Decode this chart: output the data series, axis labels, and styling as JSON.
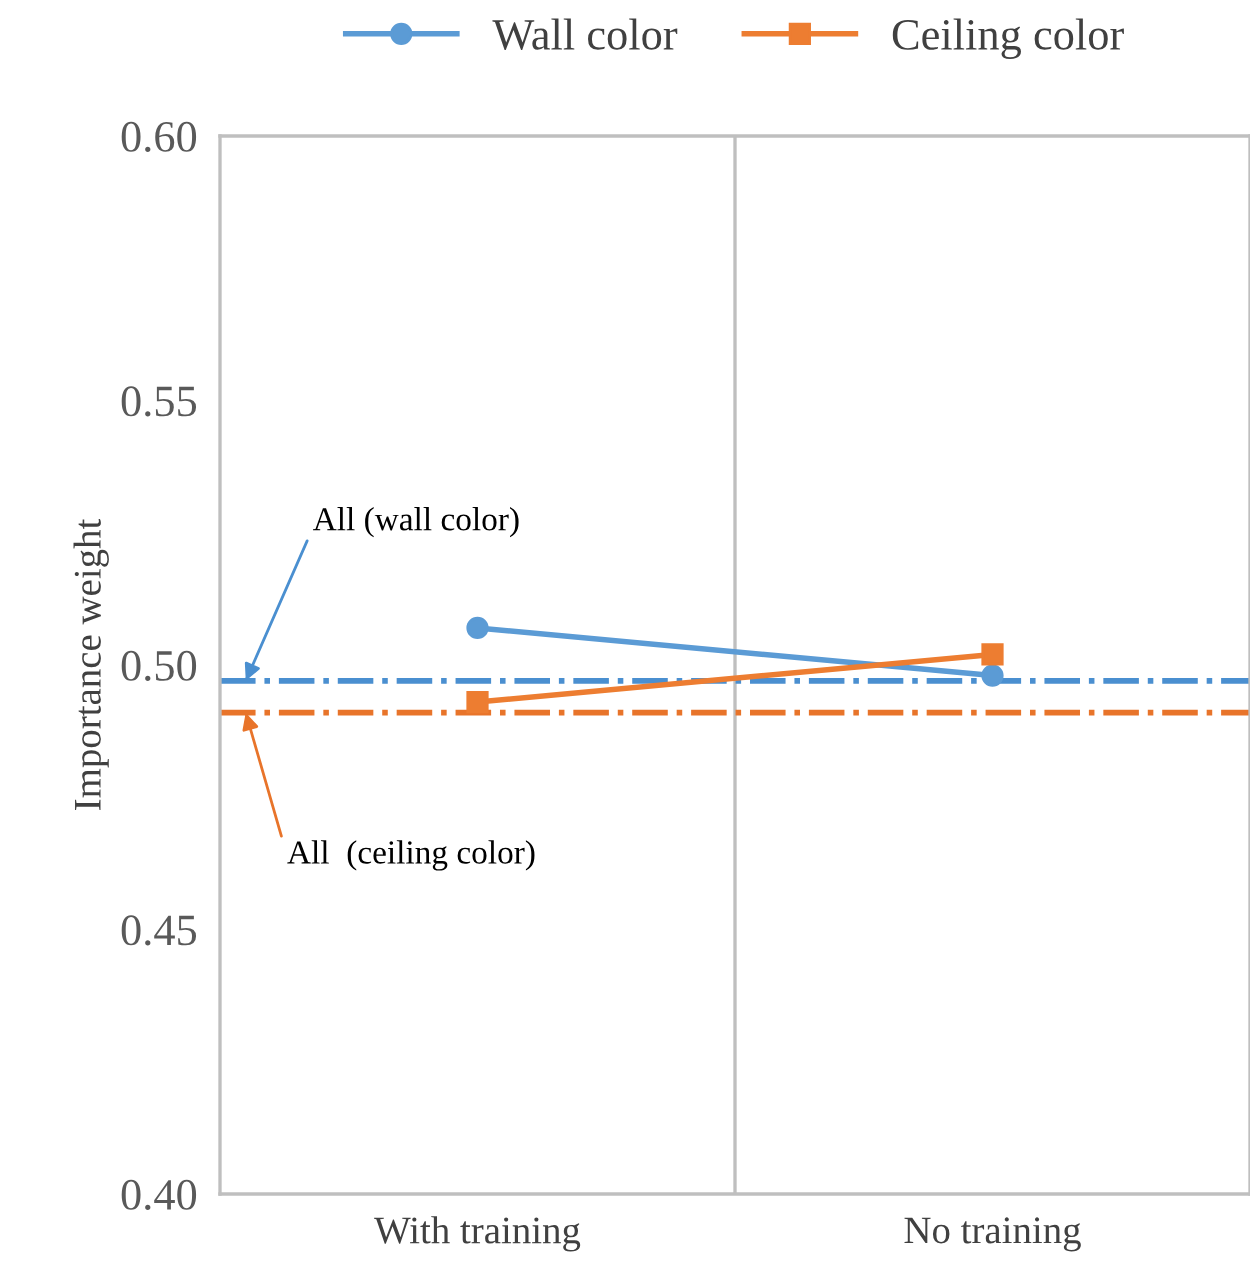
{
  "chart_data": {
    "type": "line",
    "ylabel": "Importance weight",
    "categories": [
      "With training",
      "No training"
    ],
    "series": [
      {
        "name": "Wall color",
        "color": "#5b9bd5",
        "marker": "circle",
        "values": [
          0.507,
          0.498
        ]
      },
      {
        "name": "Ceiling color",
        "color": "#ed7d31",
        "marker": "square",
        "values": [
          0.493,
          0.502
        ]
      }
    ],
    "ylim": [
      0.4,
      0.6
    ],
    "yticks": [
      {
        "value": 0.4,
        "label": "0.40"
      },
      {
        "value": 0.45,
        "label": "0.45"
      },
      {
        "value": 0.5,
        "label": "0.50"
      },
      {
        "value": 0.55,
        "label": "0.55"
      },
      {
        "value": 0.6,
        "label": "0.60"
      }
    ],
    "ref_lines": [
      {
        "axis": "y",
        "value": 0.497,
        "color": "#4a8fd0",
        "line_style": "dashdot",
        "label": "All (wall color)"
      },
      {
        "axis": "y",
        "value": 0.491,
        "color": "#e8742a",
        "line_style": "dashdot",
        "label": "All  (ceiling color)"
      }
    ],
    "grid": "x",
    "legend": "top"
  }
}
